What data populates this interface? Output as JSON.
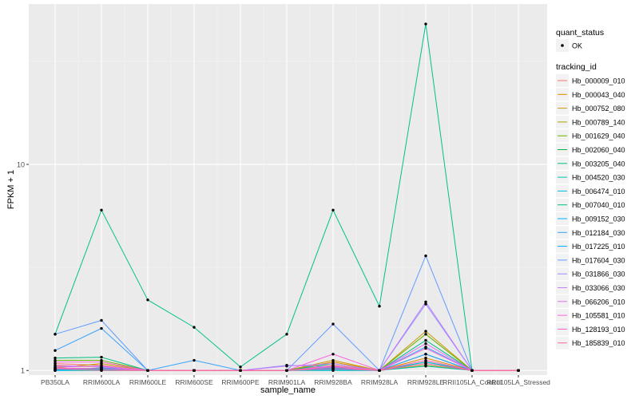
{
  "chart_data": {
    "type": "line",
    "xlabel": "sample_name",
    "ylabel": "FPKM + 1",
    "y_scale": "log10",
    "ylim": [
      0.95,
      60
    ],
    "y_ticks": [
      1,
      10
    ],
    "y_tick_labels": [
      "1",
      "10"
    ],
    "grid": true,
    "legend_position": "right",
    "categories": [
      "PB350LA",
      "RRIM600LA",
      "RRIM600LE",
      "RRIM600SE",
      "RRIM600PE",
      "RRIM901LA",
      "RRIM928BA",
      "RRIM928LA",
      "RRIM928LE",
      "RRII105LA_Control",
      "RRII105LA_Stressed"
    ],
    "shape_legend": {
      "title": "quant_status",
      "items": [
        "OK"
      ]
    },
    "color_legend_title": "tracking_id",
    "series": [
      {
        "name": "Hb_000009_010",
        "color": "#F8766D",
        "values": [
          1.08,
          1.06,
          1.0,
          1.0,
          1.0,
          1.0,
          1.06,
          1.0,
          1.2,
          1.0,
          1.0
        ]
      },
      {
        "name": "Hb_000043_040",
        "color": "#E58700",
        "values": [
          1.05,
          1.04,
          1.0,
          1.0,
          1.0,
          1.0,
          1.1,
          1.0,
          1.15,
          1.0,
          1.0
        ]
      },
      {
        "name": "Hb_000752_080",
        "color": "#C99800",
        "values": [
          1.03,
          1.08,
          1.0,
          1.0,
          1.0,
          1.0,
          1.12,
          1.0,
          1.55,
          1.0,
          1.0
        ]
      },
      {
        "name": "Hb_000789_140",
        "color": "#A3A500",
        "values": [
          1.02,
          1.02,
          1.0,
          1.0,
          1.0,
          1.0,
          1.03,
          1.0,
          1.06,
          1.0,
          1.0
        ]
      },
      {
        "name": "Hb_001629_040",
        "color": "#6BB100",
        "values": [
          1.12,
          1.12,
          1.0,
          1.0,
          1.0,
          1.0,
          1.05,
          1.0,
          1.5,
          1.0,
          1.0
        ]
      },
      {
        "name": "Hb_002060_040",
        "color": "#00BA38",
        "values": [
          1.01,
          1.01,
          1.0,
          1.0,
          1.0,
          1.0,
          1.02,
          1.0,
          1.1,
          1.0,
          1.0
        ]
      },
      {
        "name": "Hb_003205_040",
        "color": "#00BF7D",
        "values": [
          1.15,
          1.16,
          1.0,
          1.0,
          1.0,
          1.0,
          1.08,
          1.0,
          1.4,
          1.0,
          1.0
        ]
      },
      {
        "name": "Hb_004520_030",
        "color": "#00C0AF",
        "values": [
          1.0,
          1.0,
          1.0,
          1.0,
          1.0,
          1.0,
          1.0,
          1.0,
          1.05,
          1.0,
          1.0
        ]
      },
      {
        "name": "Hb_006474_010",
        "color": "#00BCD8",
        "values": [
          1.0,
          1.01,
          1.0,
          1.0,
          1.0,
          1.0,
          1.02,
          1.0,
          1.1,
          1.0,
          1.0
        ]
      },
      {
        "name": "Hb_007040_010",
        "color": "#00C08B",
        "values": [
          1.5,
          6.0,
          2.2,
          1.62,
          1.04,
          1.5,
          6.0,
          2.05,
          48.0,
          1.0,
          1.0
        ]
      },
      {
        "name": "Hb_009152_030",
        "color": "#00B0F6",
        "values": [
          1.01,
          1.02,
          1.0,
          1.0,
          1.0,
          1.0,
          1.03,
          1.0,
          1.08,
          1.0,
          1.0
        ]
      },
      {
        "name": "Hb_012184_030",
        "color": "#35A2FF",
        "values": [
          1.25,
          1.6,
          1.0,
          1.12,
          1.0,
          1.0,
          1.02,
          1.0,
          1.3,
          1.0,
          1.0
        ]
      },
      {
        "name": "Hb_017225_010",
        "color": "#00A9FF",
        "values": [
          1.0,
          1.03,
          1.0,
          1.0,
          1.0,
          1.0,
          1.01,
          1.0,
          1.2,
          1.0,
          1.0
        ]
      },
      {
        "name": "Hb_017604_030",
        "color": "#619CFF",
        "values": [
          1.5,
          1.75,
          1.0,
          1.0,
          1.0,
          1.0,
          1.68,
          1.0,
          3.6,
          1.0,
          1.0
        ]
      },
      {
        "name": "Hb_031866_030",
        "color": "#9590FF",
        "values": [
          1.02,
          1.02,
          1.0,
          1.0,
          1.0,
          1.06,
          1.04,
          1.0,
          2.1,
          1.0,
          1.0
        ]
      },
      {
        "name": "Hb_033066_030",
        "color": "#C77CFF",
        "values": [
          1.04,
          1.05,
          1.0,
          1.0,
          1.0,
          1.05,
          1.08,
          1.0,
          2.15,
          1.0,
          1.0
        ]
      },
      {
        "name": "Hb_066206_010",
        "color": "#E76BF3",
        "values": [
          1.06,
          1.04,
          1.0,
          1.0,
          1.0,
          1.0,
          1.05,
          1.0,
          1.35,
          1.0,
          1.0
        ]
      },
      {
        "name": "Hb_105581_010",
        "color": "#FA62DB",
        "values": [
          1.1,
          1.1,
          1.0,
          1.0,
          1.0,
          1.0,
          1.2,
          1.0,
          1.28,
          1.0,
          1.0
        ]
      },
      {
        "name": "Hb_128193_010",
        "color": "#FF62BC",
        "values": [
          1.03,
          1.02,
          1.0,
          1.0,
          1.0,
          1.0,
          1.04,
          1.0,
          1.12,
          1.0,
          1.0
        ]
      },
      {
        "name": "Hb_185839_010",
        "color": "#FF6C91",
        "values": [
          1.02,
          1.0,
          1.0,
          1.0,
          1.0,
          1.0,
          1.02,
          1.0,
          1.08,
          1.0,
          1.0
        ]
      }
    ]
  }
}
